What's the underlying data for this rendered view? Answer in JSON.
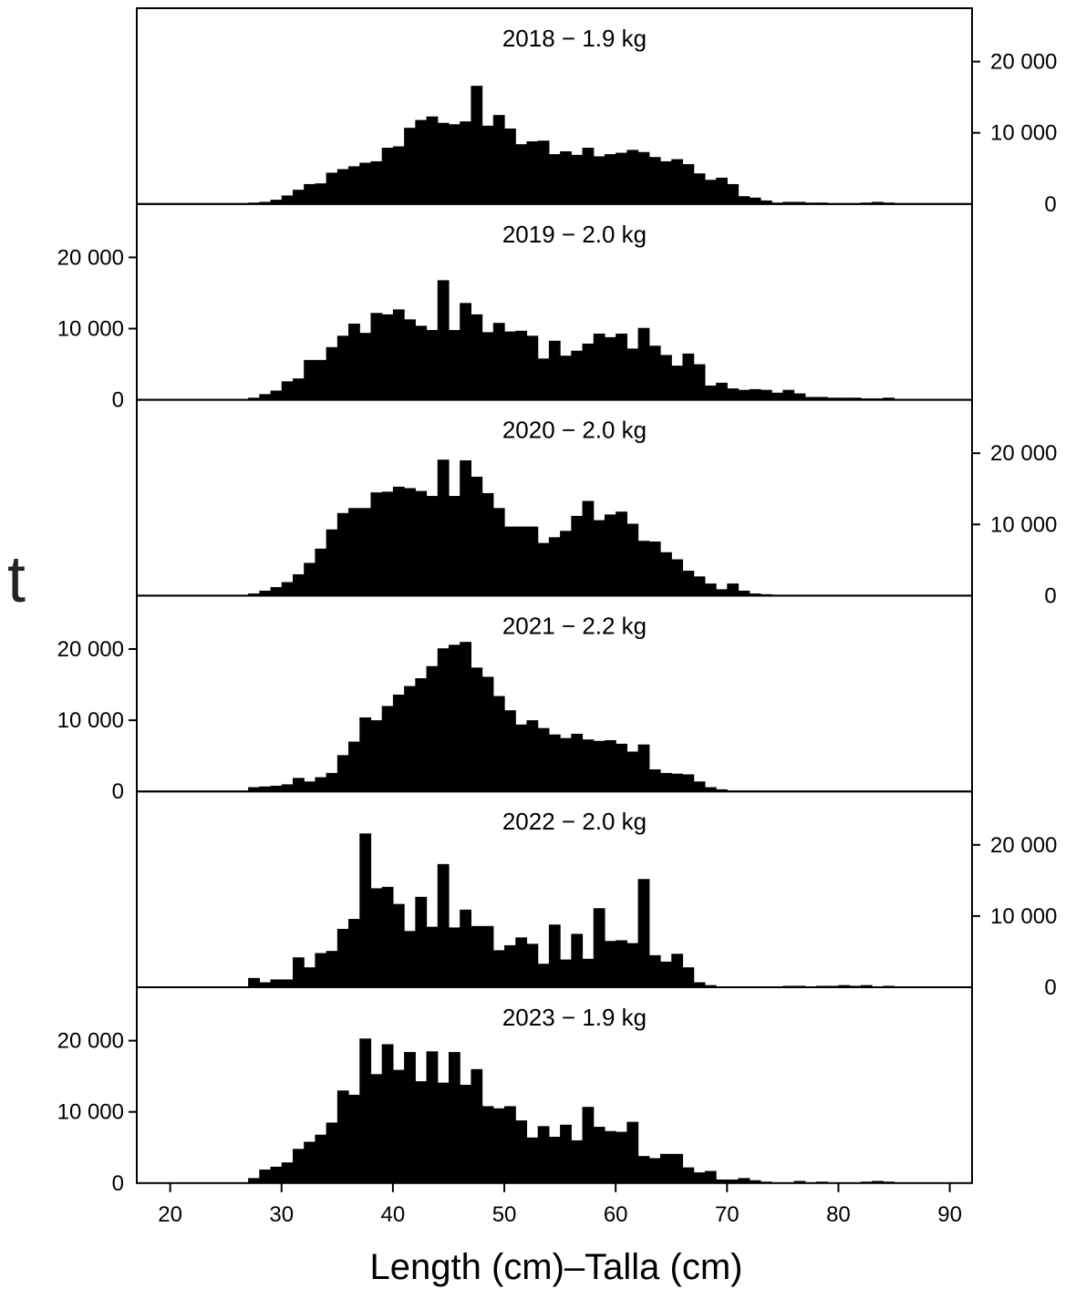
{
  "chart_data": {
    "type": "bar",
    "xlabel": "Length (cm)–Talla (cm)",
    "ylabel": "t",
    "xlim": [
      17,
      92
    ],
    "xticks": [
      20,
      30,
      40,
      50,
      60,
      70,
      80,
      90
    ],
    "ylim": [
      0,
      27500
    ],
    "yticks": [
      0,
      10000,
      20000
    ],
    "ytick_labels": [
      "0",
      "10 000",
      "20 000"
    ],
    "bin_start": 17,
    "bin_width": 1,
    "panels": [
      {
        "year": "2018",
        "sep": "−",
        "weight": "1.9",
        "unit": "kg",
        "axis_side": "right",
        "values": [
          0,
          0,
          0,
          0,
          0,
          0,
          0,
          0,
          0,
          0,
          200,
          300,
          600,
          1200,
          2000,
          2800,
          2900,
          4400,
          4900,
          5300,
          5800,
          6000,
          7900,
          8100,
          10700,
          11800,
          12300,
          11400,
          11200,
          11600,
          16600,
          11000,
          12500,
          10600,
          8400,
          8800,
          8900,
          7000,
          7400,
          6900,
          7900,
          6700,
          7000,
          7200,
          7600,
          7300,
          6600,
          6000,
          6300,
          5600,
          4300,
          3400,
          3700,
          2800,
          1100,
          900,
          500,
          200,
          300,
          300,
          200,
          200,
          100,
          100,
          100,
          200,
          300,
          200,
          100,
          100,
          0,
          0,
          0,
          0,
          0
        ]
      },
      {
        "year": "2019",
        "sep": "−",
        "weight": "2.0",
        "unit": "kg",
        "axis_side": "left",
        "values": [
          0,
          0,
          0,
          0,
          0,
          0,
          0,
          0,
          0,
          0,
          300,
          800,
          1300,
          2600,
          3000,
          5600,
          5600,
          7400,
          9000,
          10700,
          9400,
          12200,
          12000,
          12700,
          11300,
          10400,
          9800,
          16800,
          9800,
          13600,
          12000,
          9500,
          10800,
          9600,
          9700,
          9000,
          5800,
          8300,
          6200,
          6900,
          7900,
          9300,
          8800,
          9300,
          7200,
          10100,
          7600,
          6300,
          4800,
          6500,
          5000,
          2000,
          2400,
          1600,
          1400,
          1500,
          1400,
          1000,
          1400,
          900,
          400,
          400,
          300,
          300,
          300,
          200,
          200,
          300,
          100,
          100,
          0,
          0,
          0,
          0,
          0
        ]
      },
      {
        "year": "2020",
        "sep": "−",
        "weight": "2.0",
        "unit": "kg",
        "axis_side": "right",
        "values": [
          0,
          0,
          0,
          0,
          0,
          0,
          0,
          0,
          0,
          0,
          300,
          700,
          1200,
          1900,
          3000,
          4600,
          6600,
          9300,
          11600,
          12300,
          12300,
          14500,
          14600,
          15300,
          15100,
          14700,
          14000,
          19100,
          14000,
          19000,
          16700,
          14400,
          12300,
          9700,
          9700,
          9700,
          7400,
          8200,
          9100,
          11200,
          13300,
          10600,
          11400,
          11800,
          10100,
          7700,
          7600,
          6100,
          5100,
          3500,
          2700,
          1700,
          900,
          1700,
          700,
          300,
          200,
          100,
          100,
          100,
          100,
          0,
          0,
          0,
          0,
          0,
          0,
          0,
          0,
          0,
          0,
          0,
          0,
          0,
          0
        ]
      },
      {
        "year": "2021",
        "sep": "−",
        "weight": "2.2",
        "unit": "kg",
        "axis_side": "left",
        "values": [
          0,
          0,
          0,
          0,
          0,
          0,
          0,
          0,
          0,
          0,
          600,
          700,
          800,
          1000,
          1900,
          1400,
          2000,
          2600,
          5100,
          7000,
          10400,
          10000,
          12000,
          13600,
          14800,
          15900,
          17600,
          20100,
          20600,
          21000,
          17400,
          16100,
          13400,
          11400,
          9400,
          10000,
          8900,
          8000,
          7500,
          8100,
          7300,
          7100,
          7200,
          6700,
          5600,
          6600,
          3100,
          2600,
          2500,
          2400,
          1400,
          600,
          300,
          100,
          100,
          100,
          0,
          0,
          0,
          0,
          0,
          0,
          0,
          0,
          0,
          0,
          0,
          0,
          0,
          0,
          0,
          0,
          0,
          0,
          0
        ]
      },
      {
        "year": "2022",
        "sep": "−",
        "weight": "2.0",
        "unit": "kg",
        "axis_side": "right",
        "values": [
          0,
          0,
          0,
          0,
          0,
          0,
          0,
          0,
          0,
          0,
          1300,
          700,
          1100,
          1100,
          4200,
          2800,
          4800,
          5100,
          8200,
          9600,
          21600,
          13900,
          14100,
          11700,
          7900,
          12700,
          8500,
          17300,
          8400,
          10900,
          8600,
          8600,
          5200,
          5900,
          7000,
          6100,
          3300,
          8800,
          3900,
          7500,
          4000,
          11100,
          6500,
          6600,
          6200,
          15200,
          4500,
          3600,
          4700,
          2800,
          700,
          300,
          100,
          100,
          100,
          100,
          100,
          100,
          200,
          200,
          100,
          200,
          200,
          300,
          200,
          300,
          100,
          200,
          100,
          0,
          0,
          0,
          0,
          0,
          0
        ]
      },
      {
        "year": "2023",
        "sep": "−",
        "weight": "1.9",
        "unit": "kg",
        "axis_side": "left",
        "values": [
          0,
          0,
          0,
          0,
          0,
          0,
          0,
          0,
          0,
          0,
          700,
          1900,
          2300,
          2900,
          4800,
          5800,
          6800,
          8500,
          13000,
          12400,
          20300,
          15300,
          19500,
          15900,
          18400,
          14300,
          18500,
          14100,
          18400,
          13800,
          16000,
          10800,
          10500,
          10800,
          8800,
          6400,
          8000,
          6500,
          8200,
          6000,
          10700,
          7900,
          7300,
          7200,
          8600,
          3800,
          3500,
          4100,
          4100,
          2200,
          1500,
          1700,
          500,
          500,
          700,
          400,
          200,
          100,
          100,
          300,
          100,
          200,
          100,
          100,
          100,
          200,
          300,
          200,
          100,
          100,
          0,
          0,
          0,
          0,
          0
        ]
      }
    ]
  }
}
